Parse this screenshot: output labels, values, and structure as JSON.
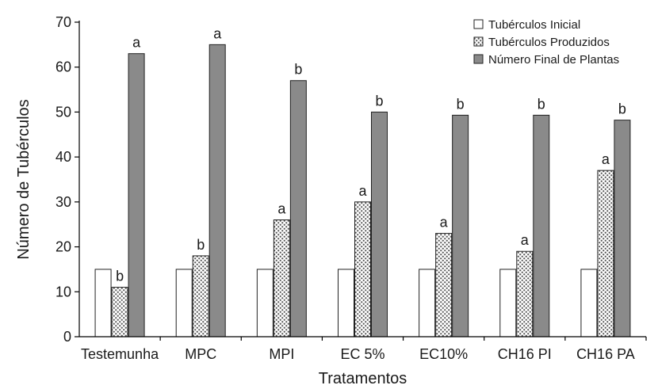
{
  "chart_data": {
    "type": "bar",
    "xlabel": "Tratamentos",
    "ylabel": "Número de Tubérculos",
    "ylim": [
      0,
      70
    ],
    "yticks": [
      0,
      10,
      20,
      30,
      40,
      50,
      60,
      70
    ],
    "grid": false,
    "legend_position": "top-right",
    "categories": [
      "Testemunha",
      "MPC",
      "MPI",
      "EC 5%",
      "EC10%",
      "CH16 PI",
      "CH16 PA"
    ],
    "series": [
      {
        "name": "Tubérculos Inicial",
        "fill": "#ffffff",
        "pattern": "none",
        "values": [
          15,
          15,
          15,
          15,
          15,
          15,
          15
        ],
        "letters": [
          "",
          "",
          "",
          "",
          "",
          "",
          ""
        ]
      },
      {
        "name": "Tubérculos Produzidos",
        "fill": "#8c8c8c",
        "pattern": "crosshatch",
        "values": [
          11,
          18,
          26,
          30,
          23,
          19,
          37
        ],
        "letters": [
          "b",
          "b",
          "a",
          "a",
          "a",
          "a",
          "a"
        ]
      },
      {
        "name": "Número Final de Plantas",
        "fill": "#8a8a8a",
        "pattern": "none",
        "values": [
          63,
          65,
          57,
          50,
          49.3,
          49.3,
          48.2
        ],
        "letters": [
          "a",
          "a",
          "b",
          "b",
          "b",
          "b",
          "b"
        ]
      }
    ]
  }
}
